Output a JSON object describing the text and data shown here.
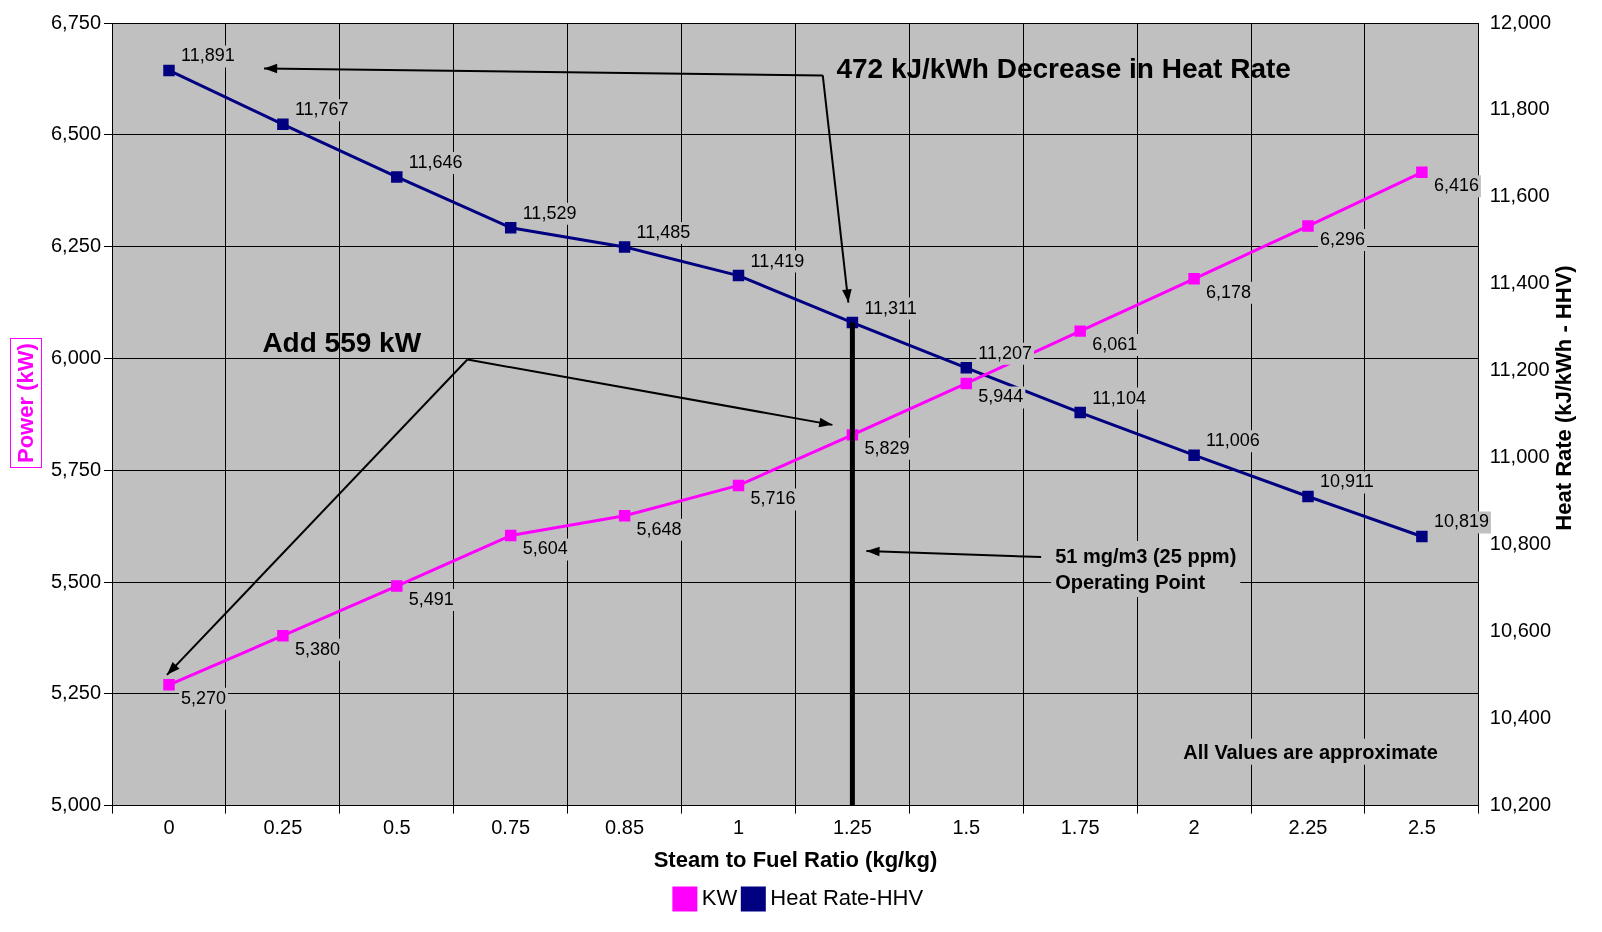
{
  "chart_data": {
    "type": "line",
    "xlabel": "Steam to Fuel Ratio (kg/kg)",
    "ylabel": "Power (kW)",
    "y2label": "Heat Rate (kJ/kWh - HHV)",
    "categories": [
      "0",
      "0.25",
      "0.5",
      "0.75",
      "0.85",
      "1",
      "1.25",
      "1.5",
      "1.75",
      "2",
      "2.25",
      "2.5"
    ],
    "series": [
      {
        "name": "KW",
        "color": "#ff00ff",
        "values": [
          5270,
          5380,
          5491,
          5604,
          5648,
          5716,
          5829,
          5944,
          6061,
          6178,
          6296,
          6416
        ],
        "value_labels": [
          "5,270",
          "5,380",
          "5,491",
          "5,604",
          "5,648",
          "5,716",
          "5,829",
          "5,944",
          "6,061",
          "6,178",
          "6,296",
          "6,416"
        ]
      },
      {
        "name": "Heat Rate-HHV",
        "color": "#000080",
        "axis": "y2",
        "values": [
          11891,
          11767,
          11646,
          11529,
          11485,
          11419,
          11311,
          11207,
          11104,
          11006,
          10911,
          10819
        ],
        "value_labels": [
          "11,891",
          "11,767",
          "11,646",
          "11,529",
          "11,485",
          "11,419",
          "11,311",
          "11,207",
          "11,104",
          "11,006",
          "10,911",
          "10,819"
        ]
      }
    ],
    "ylim": [
      5000,
      6750
    ],
    "yticks": [
      {
        "value": 5000,
        "label": "5,000"
      },
      {
        "value": 5250,
        "label": "5,250"
      },
      {
        "value": 5500,
        "label": "5,500"
      },
      {
        "value": 5750,
        "label": "5,750"
      },
      {
        "value": 6000,
        "label": "6,000"
      },
      {
        "value": 6250,
        "label": "6,250"
      },
      {
        "value": 6500,
        "label": "6,500"
      },
      {
        "value": 6750,
        "label": "6,750"
      }
    ],
    "y2lim": [
      10200,
      12000
    ],
    "y2ticks": [
      {
        "value": 10200,
        "label": "10,200"
      },
      {
        "value": 10400,
        "label": "10,400"
      },
      {
        "value": 10600,
        "label": "10,600"
      },
      {
        "value": 10800,
        "label": "10,800"
      },
      {
        "value": 11000,
        "label": "11,000"
      },
      {
        "value": 11200,
        "label": "11,200"
      },
      {
        "value": 11400,
        "label": "11,400"
      },
      {
        "value": 11600,
        "label": "11,600"
      },
      {
        "value": 11800,
        "label": "11,800"
      },
      {
        "value": 12000,
        "label": "12,000"
      }
    ],
    "ref_lines": [
      {
        "axis": "x",
        "value": "1.25",
        "color": "#000000"
      }
    ],
    "annotations": [
      "472 kJ/kWh Decrease in Heat Rate",
      "Add 559 kW",
      "51 mg/m3 (25 ppm)\nOperating Point",
      "All Values are approximate"
    ],
    "grid": true,
    "legend": "bottom",
    "marker": "square",
    "line_style": "solid"
  }
}
